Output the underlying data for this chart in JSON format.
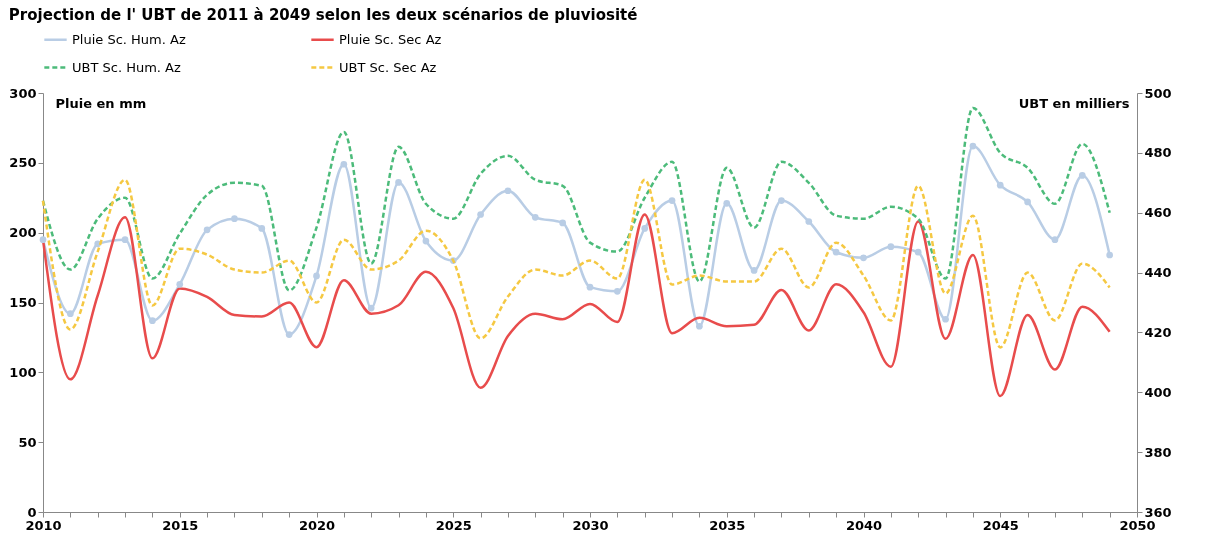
{
  "chart_data": {
    "type": "line",
    "title": "Projection de l' UBT de 2011 à 2049 selon les deux scénarios de pluviosité",
    "ylabel": "Pluie en mm",
    "y2label": "UBT en milliers",
    "x": [
      2010,
      2011,
      2012,
      2013,
      2014,
      2015,
      2016,
      2017,
      2018,
      2019,
      2020,
      2021,
      2022,
      2023,
      2024,
      2025,
      2026,
      2027,
      2028,
      2029,
      2030,
      2031,
      2032,
      2033,
      2034,
      2035,
      2036,
      2037,
      2038,
      2039,
      2040,
      2041,
      2042,
      2043,
      2044,
      2045,
      2046,
      2047,
      2048,
      2049
    ],
    "xlim": [
      2010,
      2050
    ],
    "xticks": [
      2010,
      {
        "value": 2011,
        "label": null
      },
      {
        "value": 2012,
        "label": null
      },
      {
        "value": 2013,
        "label": null
      },
      {
        "value": 2014,
        "label": null
      },
      2015,
      {
        "value": 2016,
        "label": null
      },
      {
        "value": 2017,
        "label": null
      },
      {
        "value": 2018,
        "label": null
      },
      {
        "value": 2019,
        "label": null
      },
      2020,
      {
        "value": 2021,
        "label": null
      },
      {
        "value": 2022,
        "label": null
      },
      {
        "value": 2023,
        "label": null
      },
      {
        "value": 2024,
        "label": null
      },
      2025,
      {
        "value": 2026,
        "label": null
      },
      {
        "value": 2027,
        "label": null
      },
      {
        "value": 2028,
        "label": null
      },
      {
        "value": 2029,
        "label": null
      },
      2030,
      {
        "value": 2031,
        "label": null
      },
      {
        "value": 2032,
        "label": null
      },
      {
        "value": 2033,
        "label": null
      },
      {
        "value": 2034,
        "label": null
      },
      2035,
      {
        "value": 2036,
        "label": null
      },
      {
        "value": 2037,
        "label": null
      },
      {
        "value": 2038,
        "label": null
      },
      {
        "value": 2039,
        "label": null
      },
      2040,
      {
        "value": 2041,
        "label": null
      },
      {
        "value": 2042,
        "label": null
      },
      {
        "value": 2043,
        "label": null
      },
      {
        "value": 2044,
        "label": null
      },
      2045,
      {
        "value": 2046,
        "label": null
      },
      {
        "value": 2047,
        "label": null
      },
      {
        "value": 2048,
        "label": null
      },
      {
        "value": 2049,
        "label": null
      },
      2050
    ],
    "ylim": [
      0,
      300
    ],
    "yticks": [
      0,
      50,
      100,
      150,
      200,
      250,
      300
    ],
    "y2lim": [
      360,
      500
    ],
    "y2ticks": [
      360,
      380,
      400,
      420,
      440,
      460,
      480,
      500
    ],
    "grid": false,
    "legend": "top",
    "series": [
      {
        "name": "Pluie Sc. Hum. Az",
        "color": "#b9cde5",
        "marker": "circle",
        "line_style": "solid",
        "values": [
          195,
          142,
          192,
          195,
          137,
          163,
          202,
          210,
          203,
          127,
          169,
          249,
          146,
          236,
          194,
          180,
          213,
          230,
          211,
          207,
          161,
          158,
          203,
          223,
          133,
          221,
          173,
          223,
          208,
          186,
          182,
          190,
          186,
          138,
          262,
          234,
          222,
          195,
          241,
          184
        ]
      },
      {
        "name": "Pluie Sc. Sec Az",
        "color": "#e84c4c",
        "marker": "none",
        "line_style": "solid",
        "values": [
          195,
          95,
          155,
          211,
          110,
          160,
          154,
          141,
          140,
          150,
          118,
          166,
          142,
          148,
          172,
          146,
          89,
          126,
          142,
          138,
          149,
          136,
          213,
          128,
          139,
          133,
          134,
          159,
          130,
          163,
          143,
          104,
          208,
          124,
          184,
          83,
          141,
          102,
          147,
          129
        ]
      },
      {
        "name": "UBT Sc. Hum. Az",
        "color": "#4cbb7a",
        "marker": "none",
        "line_style": "dashed",
        "axis": "y2",
        "values": [
          464,
          441,
          458,
          465,
          438,
          453,
          466,
          470,
          469,
          434,
          455,
          487,
          443,
          482,
          463,
          458,
          473,
          479,
          471,
          469,
          450,
          447,
          465,
          477,
          437,
          475,
          455,
          477,
          470,
          459,
          458,
          462,
          458,
          438,
          495,
          480,
          475,
          463,
          483,
          460
        ]
      },
      {
        "name": "UBT Sc. Sec  Az",
        "color": "#f5c842",
        "marker": "none",
        "line_style": "dashed",
        "axis": "y2",
        "values": [
          464,
          421,
          447,
          471,
          429,
          448,
          446,
          441,
          440,
          444,
          430,
          451,
          441,
          444,
          454,
          444,
          418,
          432,
          441,
          439,
          444,
          438,
          471,
          436,
          439,
          437,
          437,
          448,
          435,
          450,
          439,
          424,
          469,
          433,
          459,
          415,
          440,
          424,
          443,
          435
        ]
      }
    ]
  }
}
